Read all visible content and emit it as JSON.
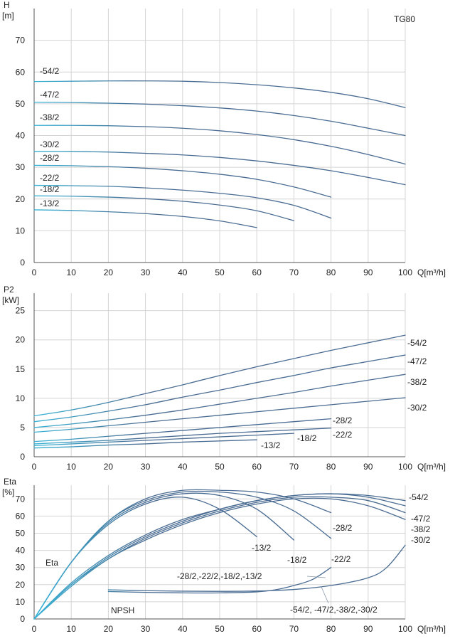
{
  "colors": {
    "curve": "#4a6c93",
    "curve_start": "#37b3d6",
    "grid": "#d4d4d4",
    "text": "#222222"
  },
  "chart_data": [
    {
      "id": "head",
      "type": "line",
      "title": "TG80",
      "ylabel": "H",
      "yunit": "[m]",
      "xlabel": "Q[m³/h]",
      "xlim": [
        0,
        100
      ],
      "ylim": [
        0,
        80
      ],
      "xticks": [
        0,
        10,
        20,
        30,
        40,
        50,
        60,
        70,
        80,
        90,
        100
      ],
      "yticks": [
        0,
        10,
        20,
        30,
        40,
        50,
        60,
        70
      ],
      "grid": true,
      "series": [
        {
          "name": "-54/2",
          "x": [
            0,
            10,
            20,
            30,
            40,
            50,
            60,
            70,
            80,
            90,
            100
          ],
          "y": [
            57,
            57.1,
            57.2,
            57.2,
            57.1,
            56.7,
            56,
            55,
            53.6,
            51.6,
            48.8
          ]
        },
        {
          "name": "-47/2",
          "x": [
            0,
            10,
            20,
            30,
            40,
            50,
            60,
            70,
            80,
            90,
            100
          ],
          "y": [
            50.5,
            50.4,
            50.2,
            49.9,
            49.4,
            48.7,
            47.7,
            46.3,
            44.5,
            42.3,
            40
          ]
        },
        {
          "name": "-38/2",
          "x": [
            0,
            10,
            20,
            30,
            40,
            50,
            60,
            70,
            80,
            90,
            100
          ],
          "y": [
            43.2,
            43.2,
            43.1,
            42.8,
            42.3,
            41.5,
            40.3,
            38.7,
            36.6,
            34,
            31
          ]
        },
        {
          "name": "-30/2",
          "x": [
            0,
            10,
            20,
            30,
            40,
            50,
            60,
            70,
            80,
            90,
            100
          ],
          "y": [
            35,
            35,
            34.8,
            34.4,
            33.9,
            33.1,
            32,
            30.6,
            28.9,
            26.8,
            24.5
          ]
        },
        {
          "name": "-28/2",
          "x": [
            0,
            10,
            20,
            30,
            40,
            50,
            60,
            70,
            80
          ],
          "y": [
            30.6,
            30.5,
            30.2,
            29.7,
            28.9,
            27.8,
            26.2,
            23.8,
            20.6
          ]
        },
        {
          "name": "-22/2",
          "x": [
            0,
            10,
            20,
            30,
            40,
            50,
            60,
            70,
            80
          ],
          "y": [
            24.3,
            24.2,
            24,
            23.5,
            22.8,
            21.8,
            20.4,
            18,
            14
          ]
        },
        {
          "name": "-18/2",
          "x": [
            0,
            10,
            20,
            30,
            40,
            50,
            60,
            70
          ],
          "y": [
            21,
            20.9,
            20.6,
            20.1,
            19.3,
            18.1,
            16.3,
            13.2
          ]
        },
        {
          "name": "-13/2",
          "x": [
            0,
            10,
            20,
            30,
            40,
            50,
            60
          ],
          "y": [
            16.6,
            16.4,
            16,
            15.4,
            14.5,
            13.1,
            11
          ]
        }
      ]
    },
    {
      "id": "power",
      "type": "line",
      "ylabel": "P2",
      "yunit": "[kW]",
      "xlabel": "Q[m³/h]",
      "xlim": [
        0,
        100
      ],
      "ylim": [
        0,
        28
      ],
      "xticks": [
        0,
        10,
        20,
        30,
        40,
        50,
        60,
        70,
        80,
        90,
        100
      ],
      "yticks": [
        0,
        5,
        10,
        15,
        20,
        25
      ],
      "grid": true,
      "series": [
        {
          "name": "-54/2",
          "x": [
            0,
            10,
            20,
            30,
            40,
            50,
            60,
            70,
            80,
            90,
            100
          ],
          "y": [
            7,
            8,
            9.3,
            10.8,
            12.3,
            13.9,
            15.4,
            16.8,
            18.2,
            19.5,
            20.8
          ]
        },
        {
          "name": "-47/2",
          "x": [
            0,
            10,
            20,
            30,
            40,
            50,
            60,
            70,
            80,
            90,
            100
          ],
          "y": [
            6,
            6.8,
            7.8,
            8.9,
            10.2,
            11.4,
            12.7,
            13.9,
            15.2,
            16.3,
            17.4
          ]
        },
        {
          "name": "-38/2",
          "x": [
            0,
            10,
            20,
            30,
            40,
            50,
            60,
            70,
            80,
            90,
            100
          ],
          "y": [
            5,
            5.6,
            6.3,
            7.1,
            8,
            9,
            10,
            11,
            12.1,
            13.1,
            14.1
          ]
        },
        {
          "name": "-30/2",
          "x": [
            0,
            10,
            20,
            30,
            40,
            50,
            60,
            70,
            80,
            90,
            100
          ],
          "y": [
            4.2,
            4.7,
            5.3,
            5.9,
            6.5,
            7.1,
            7.7,
            8.3,
            8.9,
            9.5,
            10.1
          ]
        },
        {
          "name": "-28/2",
          "x": [
            0,
            10,
            20,
            30,
            40,
            50,
            60,
            70,
            80
          ],
          "y": [
            2.6,
            3,
            3.5,
            4,
            4.5,
            5,
            5.5,
            6,
            6.5
          ]
        },
        {
          "name": "-22/2",
          "x": [
            0,
            10,
            20,
            30,
            40,
            50,
            60,
            70,
            80
          ],
          "y": [
            2.2,
            2.5,
            2.8,
            3.2,
            3.6,
            4,
            4.3,
            4.6,
            4.9
          ]
        },
        {
          "name": "-18/2",
          "x": [
            0,
            10,
            20,
            30,
            40,
            50,
            60,
            70
          ],
          "y": [
            1.9,
            2.2,
            2.5,
            2.8,
            3.1,
            3.4,
            3.7,
            4
          ]
        },
        {
          "name": "-13/2",
          "x": [
            0,
            10,
            20,
            30,
            40,
            50,
            60
          ],
          "y": [
            1.5,
            1.7,
            2,
            2.2,
            2.5,
            2.7,
            2.9
          ]
        }
      ]
    },
    {
      "id": "efficiency",
      "type": "line",
      "ylabel": "Eta",
      "yunit": "[%]",
      "xlabel": "Q[m³/h]",
      "xlim": [
        0,
        100
      ],
      "ylim": [
        0,
        78
      ],
      "xticks": [
        0,
        10,
        20,
        30,
        40,
        50,
        60,
        70,
        80,
        90,
        100
      ],
      "yticks": [
        0,
        10,
        20,
        30,
        40,
        50,
        60,
        70
      ],
      "grid": true,
      "curve_labels": [
        "Eta",
        "NPSH"
      ],
      "series": [
        {
          "name": "-13/2",
          "kind": "eta",
          "x": [
            0,
            10,
            20,
            30,
            40,
            50,
            60
          ],
          "y": [
            0,
            33,
            55,
            67,
            71,
            64,
            48
          ]
        },
        {
          "name": "-18/2",
          "kind": "eta",
          "x": [
            0,
            10,
            20,
            30,
            40,
            50,
            60,
            70
          ],
          "y": [
            0,
            33,
            56,
            68,
            73,
            72,
            64,
            46
          ]
        },
        {
          "name": "-22/2",
          "kind": "eta",
          "x": [
            0,
            10,
            20,
            30,
            40,
            50,
            60,
            70,
            80
          ],
          "y": [
            0,
            33,
            57,
            69,
            74,
            74,
            71,
            63,
            47
          ]
        },
        {
          "name": "-28/2",
          "kind": "eta",
          "x": [
            0,
            10,
            20,
            30,
            40,
            50,
            60,
            70,
            80
          ],
          "y": [
            0,
            33,
            57,
            70,
            75,
            75,
            74,
            70,
            62
          ]
        },
        {
          "name": "-54/2",
          "kind": "eta",
          "x": [
            0,
            10,
            20,
            30,
            40,
            50,
            60,
            70,
            80,
            90,
            100
          ],
          "y": [
            0,
            21,
            37,
            49,
            58,
            64,
            69,
            72,
            73,
            72,
            69
          ]
        },
        {
          "name": "-47/2",
          "kind": "eta",
          "x": [
            0,
            10,
            20,
            30,
            40,
            50,
            60,
            70,
            80,
            90,
            100
          ],
          "y": [
            0,
            20,
            36,
            48,
            57,
            64,
            69,
            72,
            73,
            71,
            66
          ]
        },
        {
          "name": "-38/2",
          "kind": "eta",
          "x": [
            0,
            10,
            20,
            30,
            40,
            50,
            60,
            70,
            80,
            90,
            100
          ],
          "y": [
            0,
            20,
            35,
            47,
            56,
            63,
            68,
            71,
            71,
            69,
            62
          ]
        },
        {
          "name": "-30/2",
          "kind": "eta",
          "x": [
            0,
            10,
            20,
            30,
            40,
            50,
            60,
            70,
            80,
            90,
            100
          ],
          "y": [
            0,
            19,
            35,
            46,
            55,
            62,
            67,
            70,
            70,
            66,
            58
          ]
        },
        {
          "name": "-28/2,-22/2,-18/2,-13/2",
          "kind": "npsh",
          "x": [
            20,
            30,
            40,
            50,
            60,
            65,
            70,
            75,
            80
          ],
          "y": [
            16,
            15.5,
            15.2,
            15.2,
            15.8,
            17,
            19.5,
            23,
            30
          ]
        },
        {
          "name": "-54/2, -47/2,-38/2,-30/2",
          "kind": "npsh",
          "x": [
            20,
            30,
            40,
            50,
            60,
            70,
            80,
            90,
            95,
            100
          ],
          "y": [
            17,
            16.5,
            16.2,
            16.1,
            16.3,
            17.2,
            19.5,
            24,
            30,
            43
          ]
        }
      ]
    }
  ]
}
